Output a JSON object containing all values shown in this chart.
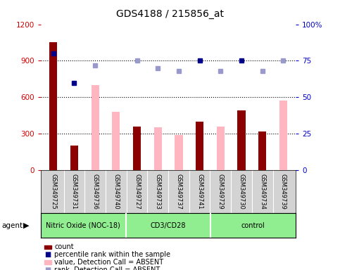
{
  "title": "GDS4188 / 215856_at",
  "samples": [
    "GSM349725",
    "GSM349731",
    "GSM349736",
    "GSM349740",
    "GSM349727",
    "GSM349733",
    "GSM349737",
    "GSM349741",
    "GSM349729",
    "GSM349730",
    "GSM349734",
    "GSM349739"
  ],
  "groups": [
    {
      "label": "Nitric Oxide (NOC-18)",
      "start": 0,
      "end": 4
    },
    {
      "label": "CD3/CD28",
      "start": 4,
      "end": 8
    },
    {
      "label": "control",
      "start": 8,
      "end": 12
    }
  ],
  "count_values": [
    1050,
    200,
    null,
    null,
    360,
    null,
    null,
    400,
    null,
    490,
    320,
    null
  ],
  "value_absent": [
    null,
    null,
    700,
    480,
    null,
    350,
    290,
    null,
    360,
    null,
    null,
    570
  ],
  "rank_present_pct": [
    80,
    60,
    null,
    null,
    null,
    null,
    null,
    75,
    null,
    75,
    null,
    null
  ],
  "rank_absent_pct": [
    null,
    null,
    72,
    null,
    75,
    70,
    68,
    null,
    68,
    null,
    68,
    75
  ],
  "ylim_left": [
    0,
    1200
  ],
  "ylim_right": [
    0,
    100
  ],
  "yticks_left": [
    0,
    300,
    600,
    900,
    1200
  ],
  "yticks_right": [
    0,
    25,
    50,
    75,
    100
  ],
  "ytick_labels_right": [
    "0",
    "25",
    "50",
    "75",
    "100%"
  ],
  "count_color": "#8B0000",
  "absent_bar_color": "#FFB6C1",
  "rank_present_color": "#00008B",
  "rank_absent_color": "#9999CC",
  "left_ylabel_color": "#CC0000",
  "right_ylabel_color": "#0000CC",
  "group_color": "#90EE90",
  "sample_bg_color": "#D3D3D3"
}
